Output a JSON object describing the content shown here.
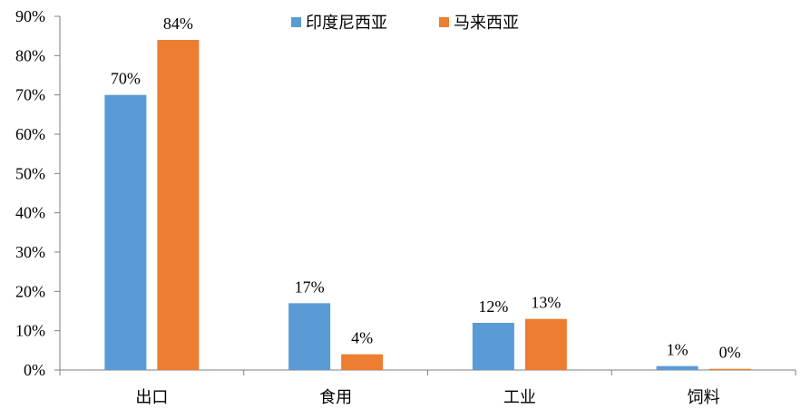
{
  "chart_data": {
    "type": "bar",
    "title": "",
    "xlabel": "",
    "ylabel": "",
    "categories": [
      "出口",
      "食用",
      "工业",
      "饲料"
    ],
    "series": [
      {
        "name": "印度尼西亚",
        "color": "#5b9bd5",
        "values": [
          70,
          17,
          12,
          1
        ],
        "labels": [
          "70%",
          "17%",
          "12%",
          "1%"
        ]
      },
      {
        "name": "马来西亚",
        "color": "#ed7d31",
        "values": [
          84,
          4,
          13,
          0.3
        ],
        "labels": [
          "84%",
          "4%",
          "13%",
          "0%"
        ]
      }
    ],
    "ylim": [
      0,
      90
    ],
    "yticks": [
      0,
      10,
      20,
      30,
      40,
      50,
      60,
      70,
      80,
      90
    ],
    "ytick_labels": [
      "0%",
      "10%",
      "20%",
      "30%",
      "40%",
      "50%",
      "60%",
      "70%",
      "80%",
      "90%"
    ],
    "grid": false,
    "legend_position": "top"
  }
}
